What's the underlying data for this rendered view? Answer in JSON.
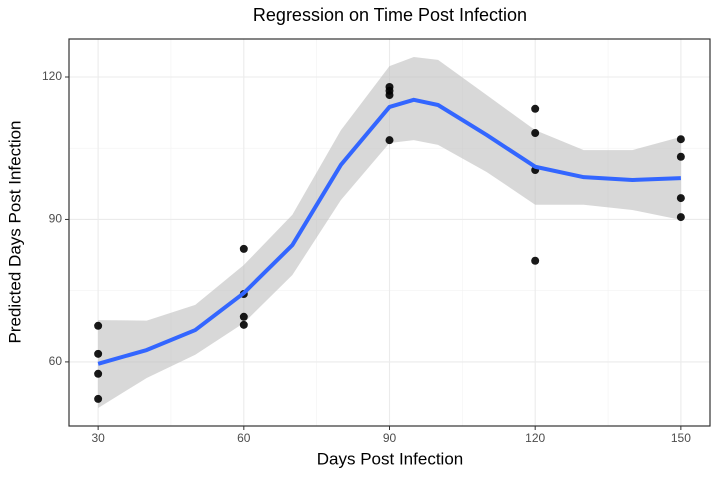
{
  "chart_data": {
    "type": "scatter",
    "title": "Regression on Time Post Infection",
    "x_label": "Days Post Infection",
    "y_label": "Predicted Days Post Infection",
    "xlim": [
      24,
      156
    ],
    "ylim": [
      46.5,
      128
    ],
    "xticks": [
      30,
      60,
      90,
      120,
      150
    ],
    "yticks": [
      60,
      90,
      120
    ],
    "xminor": [
      45,
      75,
      105,
      135
    ],
    "yminor": [
      75,
      105
    ],
    "grid": true,
    "series": [
      {
        "color": "#000000",
        "x": [
          30,
          30,
          30,
          30,
          60,
          60,
          60,
          60,
          90,
          90,
          90,
          90,
          120,
          120,
          120,
          120,
          150,
          150,
          150,
          150
        ],
        "values": [
          67.6,
          61.7,
          57.5,
          52.2,
          83.8,
          74.3,
          69.5,
          67.8,
          117.9,
          117.1,
          116.2,
          106.7,
          113.3,
          108.2,
          100.4,
          81.3,
          106.9,
          103.2,
          94.5,
          90.5
        ]
      }
    ],
    "smooth": {
      "color": "#3366ff",
      "band_color": "#bebebe",
      "x": [
        30,
        40,
        50,
        60,
        70,
        80,
        90,
        95,
        100,
        110,
        120,
        130,
        140,
        150
      ],
      "fit": [
        59.6,
        62.5,
        66.7,
        74.5,
        84.6,
        101.5,
        113.7,
        115.2,
        114.1,
        107.8,
        101.1,
        98.9,
        98.3,
        98.7
      ],
      "upper": [
        68.8,
        68.7,
        72,
        80.4,
        91,
        108.8,
        122.3,
        124.2,
        123.6,
        116.2,
        108.8,
        104.6,
        104.6,
        107.4
      ],
      "lower": [
        50.3,
        56.6,
        61.5,
        68.2,
        78.3,
        94.1,
        106.1,
        106.7,
        105.7,
        100,
        93.1,
        93.1,
        92,
        89.9
      ]
    }
  }
}
